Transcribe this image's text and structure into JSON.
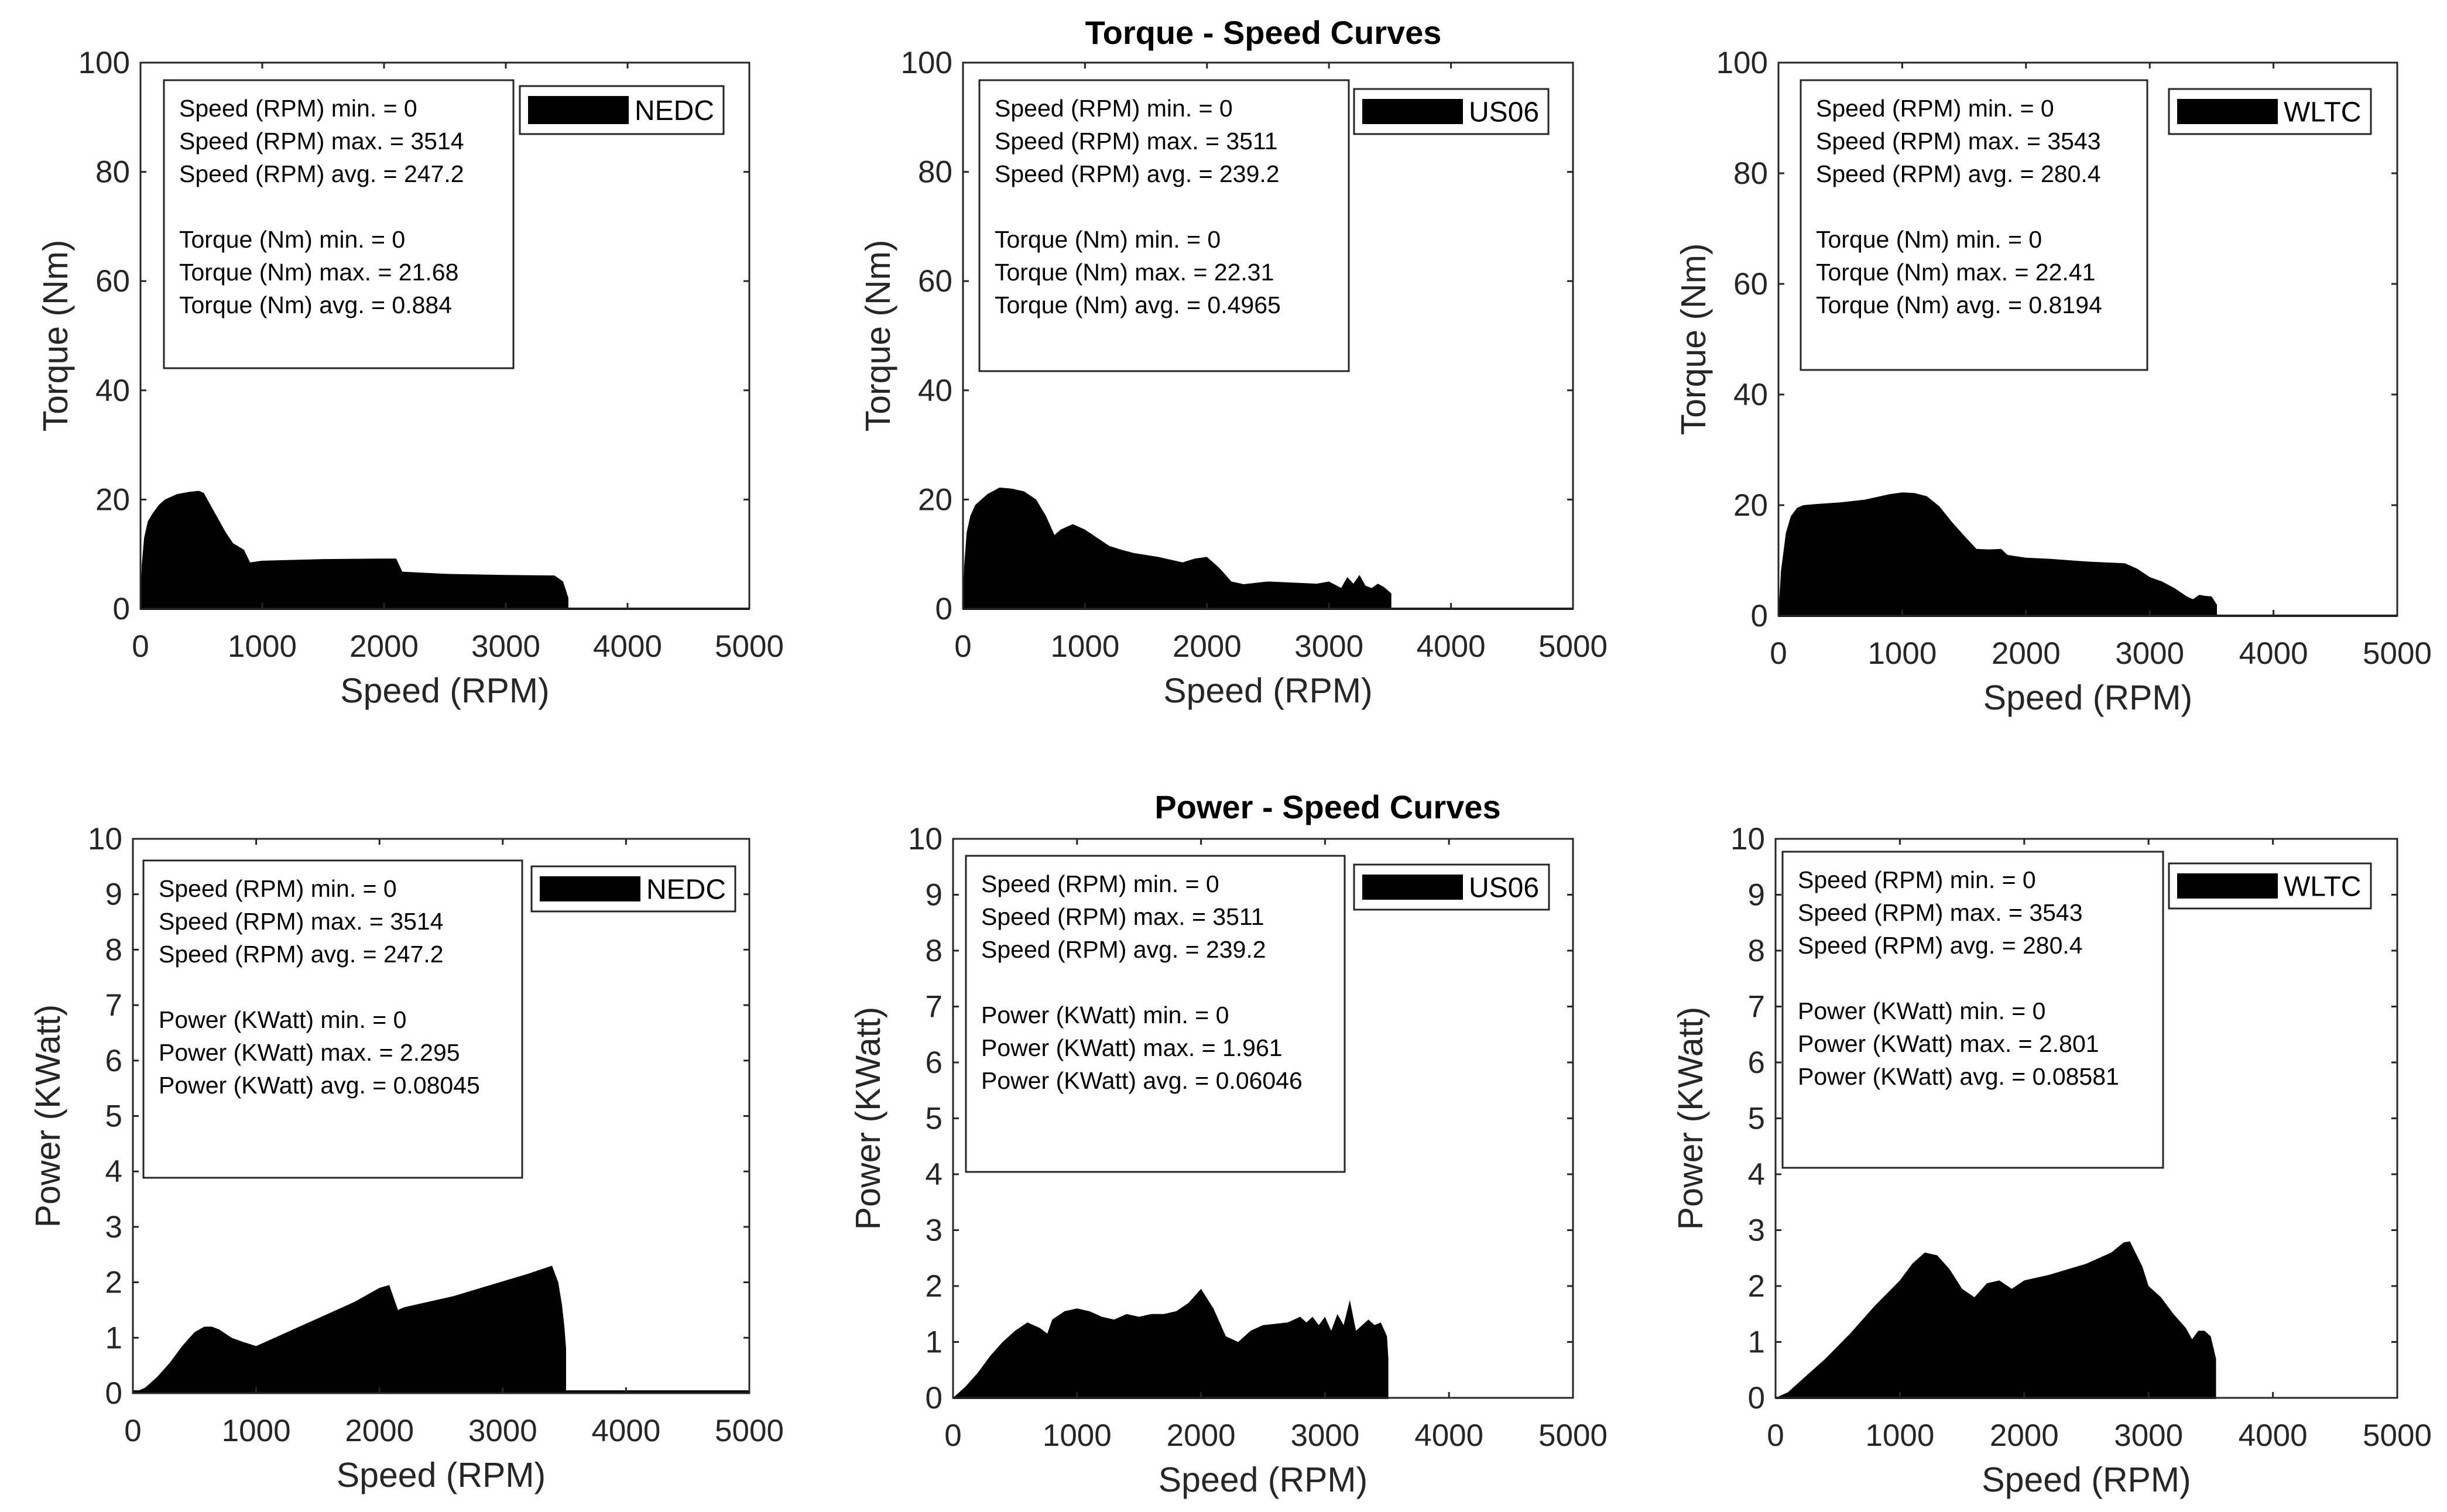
{
  "titles": {
    "torque": "Torque - Speed Curves",
    "power": "Power - Speed Curves"
  },
  "colors": {
    "series": "#000000",
    "axes": "#262626",
    "background": "#ffffff"
  },
  "chart_data": [
    {
      "type": "area",
      "id": "torque-nedc",
      "xlabel": "Speed (RPM)",
      "ylabel": "Torque (Nm)",
      "xlim": [
        0,
        5000
      ],
      "ylim": [
        0,
        100
      ],
      "xticks": [
        0,
        1000,
        2000,
        3000,
        4000,
        5000
      ],
      "yticks": [
        0,
        20,
        40,
        60,
        80,
        100
      ],
      "legend": "NEDC",
      "stats": [
        "Speed (RPM) min. = 0",
        "Speed (RPM) max. = 3514",
        "Speed (RPM) avg. = 247.2",
        "",
        "Torque (Nm) min. = 0",
        "Torque (Nm) max. = 21.68",
        "Torque (Nm) avg. = 0.884"
      ],
      "x": [
        0,
        10,
        30,
        60,
        100,
        150,
        200,
        300,
        400,
        480,
        520,
        600,
        700,
        760,
        850,
        900,
        1000,
        1500,
        2000,
        2100,
        2150,
        2500,
        3000,
        3400,
        3470,
        3514
      ],
      "y": [
        0,
        8,
        13,
        16,
        17.5,
        19,
        20,
        21,
        21.4,
        21.6,
        21.2,
        18,
        14,
        12,
        10.8,
        8.5,
        8.8,
        9.1,
        9.2,
        9.2,
        6.8,
        6.4,
        6.2,
        6.1,
        5,
        2
      ],
      "baseline": [
        5000,
        0
      ]
    },
    {
      "type": "area",
      "id": "torque-us06",
      "xlabel": "Speed (RPM)",
      "ylabel": "Torque (Nm)",
      "xlim": [
        0,
        5000
      ],
      "ylim": [
        0,
        100
      ],
      "xticks": [
        0,
        1000,
        2000,
        3000,
        4000,
        5000
      ],
      "yticks": [
        0,
        20,
        40,
        60,
        80,
        100
      ],
      "legend": "US06",
      "stats": [
        "Speed (RPM) min. = 0",
        "Speed (RPM) max. = 3511",
        "Speed (RPM) avg. = 239.2",
        "",
        "Torque (Nm) min. = 0",
        "Torque (Nm) max. = 22.31",
        "Torque (Nm) avg. = 0.4965"
      ],
      "x": [
        0,
        10,
        30,
        60,
        100,
        200,
        300,
        400,
        500,
        600,
        680,
        750,
        800,
        900,
        1000,
        1100,
        1200,
        1300,
        1400,
        1600,
        1800,
        1900,
        2000,
        2100,
        2200,
        2300,
        2500,
        2700,
        2900,
        3000,
        3100,
        3150,
        3200,
        3250,
        3300,
        3350,
        3400,
        3450,
        3511
      ],
      "y": [
        0,
        8,
        14,
        17,
        19,
        21,
        22.2,
        22,
        21.5,
        20,
        17,
        13.5,
        14.5,
        15.5,
        14.5,
        13,
        11.5,
        10.8,
        10.2,
        9.5,
        8.5,
        9.2,
        9.5,
        7.5,
        5,
        4.5,
        5,
        4.8,
        4.6,
        5,
        3.8,
        5.8,
        4.6,
        6.2,
        4.2,
        3.8,
        4.6,
        4,
        2.8
      ],
      "baseline": [
        5000,
        0
      ]
    },
    {
      "type": "area",
      "id": "torque-wltc",
      "xlabel": "Speed (RPM)",
      "ylabel": "Torque (Nm)",
      "xlim": [
        0,
        5000
      ],
      "ylim": [
        0,
        100
      ],
      "xticks": [
        0,
        1000,
        2000,
        3000,
        4000,
        5000
      ],
      "yticks": [
        0,
        20,
        40,
        60,
        80,
        100
      ],
      "legend": "WLTC",
      "stats": [
        "Speed (RPM) min. = 0",
        "Speed (RPM) max. = 3543",
        "Speed (RPM) avg. = 280.4",
        "",
        "Torque (Nm) min. = 0",
        "Torque (Nm) max. = 22.41",
        "Torque (Nm) avg. = 0.8194"
      ],
      "x": [
        0,
        20,
        60,
        100,
        150,
        200,
        300,
        500,
        700,
        900,
        1000,
        1100,
        1200,
        1300,
        1400,
        1500,
        1600,
        1700,
        1800,
        1850,
        2000,
        2200,
        2500,
        2800,
        2900,
        3000,
        3100,
        3200,
        3300,
        3350,
        3400,
        3450,
        3500,
        3543
      ],
      "y": [
        0,
        8,
        15,
        18,
        19.5,
        20,
        20.2,
        20.5,
        21,
        22,
        22.3,
        22.2,
        21.6,
        19.8,
        17,
        14.5,
        12.1,
        12,
        12.1,
        11,
        10.5,
        10.3,
        9.8,
        9.5,
        8.5,
        7,
        6.2,
        5,
        3.5,
        3,
        3.8,
        3.6,
        3.5,
        2
      ],
      "baseline": [
        5000,
        0
      ]
    },
    {
      "type": "area",
      "id": "power-nedc",
      "xlabel": "Speed (RPM)",
      "ylabel": "Power (KWatt)",
      "xlim": [
        0,
        5000
      ],
      "ylim": [
        0,
        10
      ],
      "xticks": [
        0,
        1000,
        2000,
        3000,
        4000,
        5000
      ],
      "yticks": [
        0,
        1,
        2,
        3,
        4,
        5,
        6,
        7,
        8,
        9,
        10
      ],
      "legend": "NEDC",
      "stats": [
        "Speed (RPM) min. = 0",
        "Speed (RPM) max. = 3514",
        "Speed (RPM) avg. = 247.2",
        "",
        "Power (KWatt) min. = 0",
        "Power (KWatt) max. = 2.295",
        "Power (KWatt) avg. = 0.08045"
      ],
      "x": [
        0,
        100,
        200,
        300,
        400,
        500,
        580,
        640,
        700,
        800,
        900,
        1000,
        1200,
        1500,
        1800,
        2000,
        2080,
        2150,
        2200,
        2400,
        2600,
        2900,
        3200,
        3400,
        3450,
        3480,
        3500,
        3514
      ],
      "y": [
        0,
        0.1,
        0.3,
        0.55,
        0.85,
        1.1,
        1.2,
        1.2,
        1.15,
        1.0,
        0.92,
        0.85,
        1.05,
        1.35,
        1.65,
        1.9,
        1.95,
        1.5,
        1.55,
        1.65,
        1.75,
        1.95,
        2.15,
        2.3,
        2.0,
        1.6,
        1.2,
        0.8
      ],
      "baseline": [
        5000,
        0.03
      ]
    },
    {
      "type": "area",
      "id": "power-us06",
      "xlabel": "Speed (RPM)",
      "ylabel": "Power (KWatt)",
      "xlim": [
        0,
        5000
      ],
      "ylim": [
        0,
        10
      ],
      "xticks": [
        0,
        1000,
        2000,
        3000,
        4000,
        5000
      ],
      "yticks": [
        0,
        1,
        2,
        3,
        4,
        5,
        6,
        7,
        8,
        9,
        10
      ],
      "legend": "US06",
      "stats": [
        "Speed (RPM) min. = 0",
        "Speed (RPM) max. = 3511",
        "Speed (RPM) avg. = 239.2",
        "",
        "Power (KWatt) min. = 0",
        "Power (KWatt) max. = 1.961",
        "Power (KWatt) avg. = 0.06046"
      ],
      "x": [
        0,
        100,
        200,
        300,
        400,
        500,
        600,
        700,
        760,
        800,
        900,
        1000,
        1100,
        1200,
        1300,
        1400,
        1500,
        1600,
        1700,
        1800,
        1900,
        2000,
        2100,
        2200,
        2300,
        2400,
        2500,
        2700,
        2800,
        2850,
        2900,
        2950,
        3000,
        3050,
        3100,
        3150,
        3200,
        3250,
        3300,
        3350,
        3400,
        3450,
        3500,
        3511
      ],
      "y": [
        0,
        0.2,
        0.45,
        0.75,
        1.0,
        1.2,
        1.35,
        1.25,
        1.15,
        1.4,
        1.55,
        1.6,
        1.55,
        1.45,
        1.4,
        1.5,
        1.45,
        1.5,
        1.5,
        1.55,
        1.7,
        1.95,
        1.6,
        1.1,
        1.0,
        1.2,
        1.3,
        1.35,
        1.45,
        1.35,
        1.45,
        1.3,
        1.45,
        1.2,
        1.5,
        1.3,
        1.75,
        1.2,
        1.3,
        1.4,
        1.3,
        1.35,
        1.1,
        0.7
      ],
      "baseline": [
        3511,
        0
      ]
    },
    {
      "type": "area",
      "id": "power-wltc",
      "xlabel": "Speed (RPM)",
      "ylabel": "Power (KWatt)",
      "xlim": [
        0,
        5000
      ],
      "ylim": [
        0,
        10
      ],
      "xticks": [
        0,
        1000,
        2000,
        3000,
        4000,
        5000
      ],
      "yticks": [
        0,
        1,
        2,
        3,
        4,
        5,
        6,
        7,
        8,
        9,
        10
      ],
      "legend": "WLTC",
      "stats": [
        "Speed (RPM) min. = 0",
        "Speed (RPM) max. = 3543",
        "Speed (RPM) avg. = 280.4",
        "",
        "Power (KWatt) min. = 0",
        "Power (KWatt) max. = 2.801",
        "Power (KWatt) avg. = 0.08581"
      ],
      "x": [
        0,
        100,
        200,
        400,
        600,
        800,
        1000,
        1100,
        1200,
        1300,
        1400,
        1500,
        1600,
        1700,
        1800,
        1900,
        2000,
        2200,
        2500,
        2700,
        2800,
        2850,
        2950,
        3000,
        3100,
        3200,
        3300,
        3350,
        3400,
        3450,
        3500,
        3543
      ],
      "y": [
        0,
        0.1,
        0.3,
        0.7,
        1.15,
        1.65,
        2.1,
        2.4,
        2.6,
        2.55,
        2.3,
        1.95,
        1.8,
        2.05,
        2.1,
        1.95,
        2.1,
        2.2,
        2.4,
        2.6,
        2.78,
        2.8,
        2.35,
        2.0,
        1.8,
        1.5,
        1.25,
        1.05,
        1.2,
        1.2,
        1.1,
        0.7
      ],
      "baseline": [
        3543,
        0
      ]
    }
  ]
}
